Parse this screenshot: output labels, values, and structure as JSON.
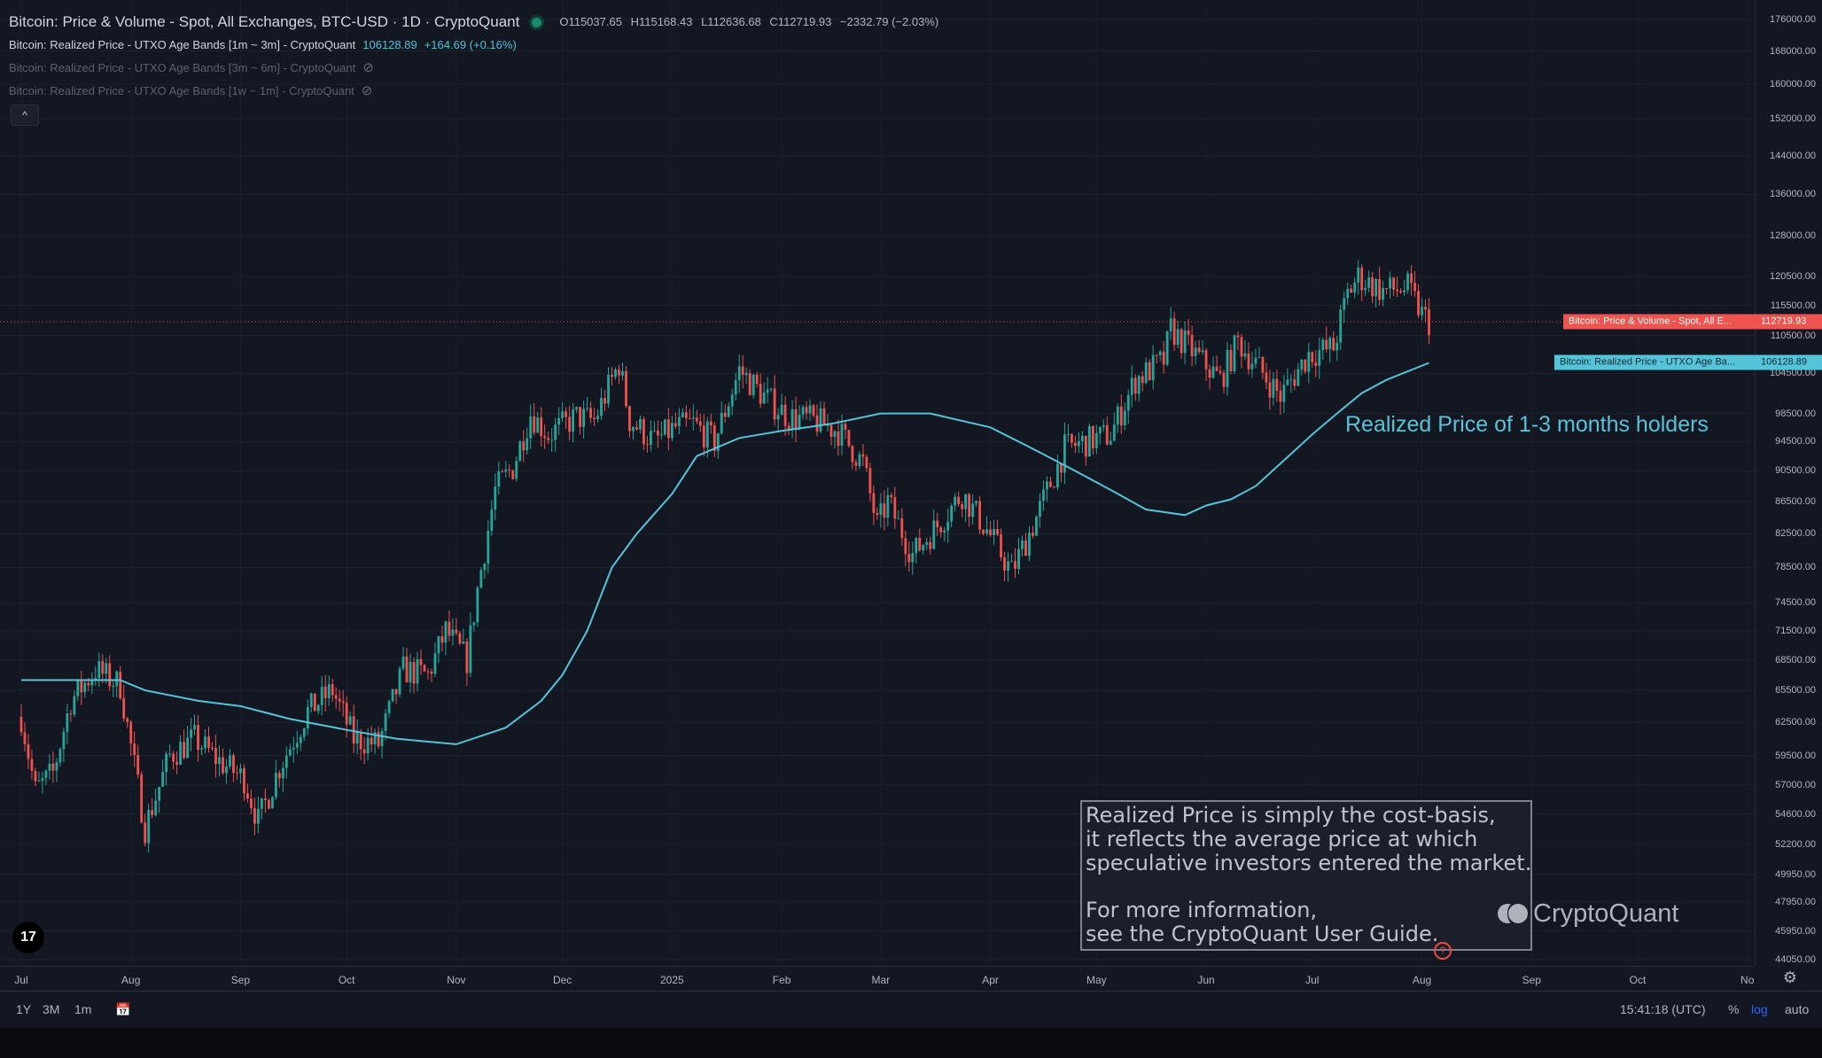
{
  "legend": {
    "title": "Bitcoin: Price & Volume - Spot, All Exchanges, BTC-USD · 1D · CryptoQuant",
    "ohlc": {
      "o": "O115037.65",
      "h": "H115168.43",
      "l": "L112636.68",
      "c": "C112719.93",
      "chg": "−2332.79 (−2.03%)"
    },
    "series1": {
      "label": "Bitcoin: Realized Price - UTXO Age Bands [1m ~ 3m] - CryptoQuant",
      "value": "106128.89",
      "change": "+164.69 (+0.16%)"
    },
    "series2": {
      "label": "Bitcoin: Realized Price - UTXO Age Bands [3m ~ 6m] - CryptoQuant"
    },
    "series3": {
      "label": "Bitcoin: Realized Price - UTXO Age Bands [1w ~ 1m] - CryptoQuant"
    },
    "collapse_icon": "^",
    "eye_icon": "⊘"
  },
  "annotation": "Realized Price of 1-3 months holders",
  "infobox": {
    "line1": "Realized Price is simply the cost-basis,",
    "line2": "it reflects the average price at which",
    "line3": "speculative investors entered the market.",
    "line4": "For more information,",
    "line5": "see the CryptoQuant User Guide."
  },
  "watermark": "CryptoQuant",
  "tv_logo": "17",
  "info_circle": "?",
  "settings_icon": "⚙",
  "price_tags": {
    "price_label": "Bitcoin: Price & Volume - Spot, All E...",
    "price_value": "112719.93",
    "realized_label": "Bitcoin: Realized Price - UTXO Age Ba...",
    "realized_value": "106128.89"
  },
  "toolbar": {
    "ranges": [
      "1Y",
      "3M",
      "1m"
    ],
    "calendar_icon": "📅",
    "time": "15:41:18 (UTC)",
    "percent": "%",
    "log": "log",
    "auto": "auto"
  },
  "colors": {
    "up": "#26a69a",
    "down": "#ef5350",
    "realized": "#56c3d9",
    "background": "#131722"
  },
  "chart_data": {
    "type": "line",
    "title": "Bitcoin: Price & Volume - Spot, All Exchanges, BTC-USD · 1D · CryptoQuant",
    "scale": "log",
    "ylim": [
      44050,
      176000
    ],
    "y_ticks": [
      176000,
      168000,
      160000,
      152000,
      144000,
      136000,
      128000,
      120500,
      115500,
      110500,
      104500,
      98500,
      94500,
      90500,
      86500,
      82500,
      78500,
      74500,
      71500,
      68500,
      65500,
      62500,
      59500,
      57000,
      54600,
      52200,
      49950,
      47950,
      45950,
      44050
    ],
    "x_ticks": [
      "Jul",
      "Aug",
      "Sep",
      "Oct",
      "Nov",
      "Dec",
      "2025",
      "Feb",
      "Mar",
      "Apr",
      "May",
      "Jun",
      "Jul",
      "Aug",
      "Sep",
      "Oct",
      "No"
    ],
    "grid": true,
    "series": [
      {
        "name": "Bitcoin: Price & Volume - Spot, All Exchanges",
        "style": "candlestick",
        "points": [
          [
            "2024-07-01",
            63000
          ],
          [
            "2024-07-05",
            56500
          ],
          [
            "2024-07-10",
            58000
          ],
          [
            "2024-07-15",
            64500
          ],
          [
            "2024-07-22",
            67500
          ],
          [
            "2024-07-29",
            66000
          ],
          [
            "2024-08-05",
            53500
          ],
          [
            "2024-08-12",
            59500
          ],
          [
            "2024-08-19",
            61000
          ],
          [
            "2024-08-26",
            59000
          ],
          [
            "2024-09-02",
            57500
          ],
          [
            "2024-09-06",
            54000
          ],
          [
            "2024-09-12",
            58500
          ],
          [
            "2024-09-20",
            63500
          ],
          [
            "2024-09-27",
            65500
          ],
          [
            "2024-10-03",
            61000
          ],
          [
            "2024-10-10",
            60500
          ],
          [
            "2024-10-17",
            67500
          ],
          [
            "2024-10-24",
            67000
          ],
          [
            "2024-10-29",
            71500
          ],
          [
            "2024-11-04",
            68500
          ],
          [
            "2024-11-07",
            76000
          ],
          [
            "2024-11-12",
            88000
          ],
          [
            "2024-11-17",
            91000
          ],
          [
            "2024-11-22",
            98500
          ],
          [
            "2024-11-27",
            95500
          ],
          [
            "2024-12-05",
            98000
          ],
          [
            "2024-12-10",
            97500
          ],
          [
            "2024-12-17",
            106000
          ],
          [
            "2024-12-20",
            97500
          ],
          [
            "2024-12-27",
            94500
          ],
          [
            "2025-01-02",
            96500
          ],
          [
            "2025-01-07",
            97000
          ],
          [
            "2025-01-13",
            94500
          ],
          [
            "2025-01-20",
            105000
          ],
          [
            "2025-01-27",
            101000
          ],
          [
            "2025-02-03",
            98000
          ],
          [
            "2025-02-10",
            97500
          ],
          [
            "2025-02-17",
            96000
          ],
          [
            "2025-02-24",
            91500
          ],
          [
            "2025-02-28",
            83500
          ],
          [
            "2025-03-03",
            86500
          ],
          [
            "2025-03-10",
            80000
          ],
          [
            "2025-03-17",
            83500
          ],
          [
            "2025-03-24",
            87500
          ],
          [
            "2025-03-31",
            83000
          ],
          [
            "2025-04-07",
            78000
          ],
          [
            "2025-04-14",
            84500
          ],
          [
            "2025-04-22",
            93500
          ],
          [
            "2025-04-28",
            94500
          ],
          [
            "2025-05-05",
            95500
          ],
          [
            "2025-05-12",
            103500
          ],
          [
            "2025-05-20",
            106500
          ],
          [
            "2025-05-22",
            111500
          ],
          [
            "2025-05-28",
            108000
          ],
          [
            "2025-06-05",
            103500
          ],
          [
            "2025-06-10",
            109500
          ],
          [
            "2025-06-17",
            104500
          ],
          [
            "2025-06-22",
            101000
          ],
          [
            "2025-06-30",
            107500
          ],
          [
            "2025-07-07",
            108500
          ],
          [
            "2025-07-11",
            117500
          ],
          [
            "2025-07-14",
            120500
          ],
          [
            "2025-07-21",
            118000
          ],
          [
            "2025-07-28",
            118500
          ],
          [
            "2025-08-01",
            114000
          ],
          [
            "2025-08-03",
            112720
          ]
        ]
      },
      {
        "name": "Bitcoin: Realized Price - UTXO Age Bands [1m ~ 3m]",
        "style": "line",
        "points": [
          [
            "2024-07-01",
            66500
          ],
          [
            "2024-07-15",
            66500
          ],
          [
            "2024-07-29",
            66500
          ],
          [
            "2024-08-05",
            65500
          ],
          [
            "2024-08-20",
            64500
          ],
          [
            "2024-09-01",
            64000
          ],
          [
            "2024-09-15",
            62800
          ],
          [
            "2024-10-01",
            61800
          ],
          [
            "2024-10-15",
            61000
          ],
          [
            "2024-11-01",
            60500
          ],
          [
            "2024-11-15",
            62000
          ],
          [
            "2024-11-25",
            64500
          ],
          [
            "2024-12-01",
            67000
          ],
          [
            "2024-12-08",
            71500
          ],
          [
            "2024-12-15",
            78500
          ],
          [
            "2024-12-22",
            82500
          ],
          [
            "2025-01-01",
            87500
          ],
          [
            "2025-01-08",
            92500
          ],
          [
            "2025-01-20",
            95000
          ],
          [
            "2025-02-01",
            96000
          ],
          [
            "2025-02-15",
            97000
          ],
          [
            "2025-03-01",
            98500
          ],
          [
            "2025-03-15",
            98500
          ],
          [
            "2025-04-01",
            96500
          ],
          [
            "2025-04-15",
            93000
          ],
          [
            "2025-04-25",
            90500
          ],
          [
            "2025-05-05",
            88000
          ],
          [
            "2025-05-15",
            85500
          ],
          [
            "2025-05-26",
            84800
          ],
          [
            "2025-06-01",
            86000
          ],
          [
            "2025-06-08",
            86800
          ],
          [
            "2025-06-15",
            88500
          ],
          [
            "2025-06-22",
            91500
          ],
          [
            "2025-07-01",
            95500
          ],
          [
            "2025-07-08",
            98500
          ],
          [
            "2025-07-15",
            101500
          ],
          [
            "2025-07-22",
            103500
          ],
          [
            "2025-08-03",
            106129
          ]
        ]
      }
    ],
    "annotations": [
      "Realized Price of 1-3 months holders"
    ]
  }
}
